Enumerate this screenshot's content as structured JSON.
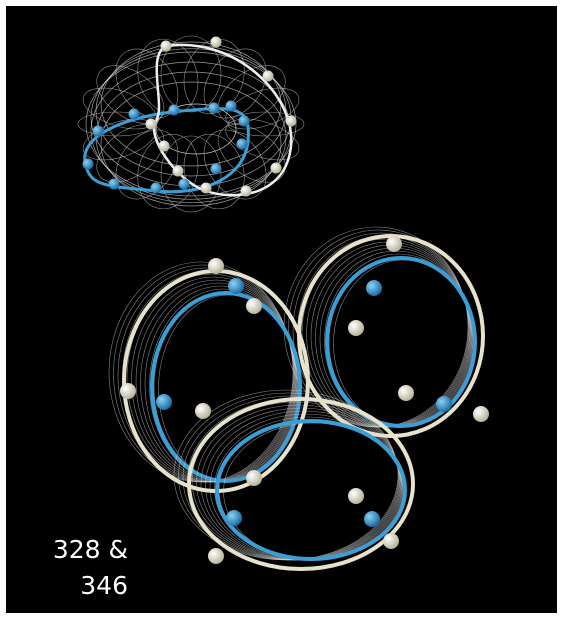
{
  "caption": {
    "lines": [
      "328 &",
      "346"
    ]
  }
}
